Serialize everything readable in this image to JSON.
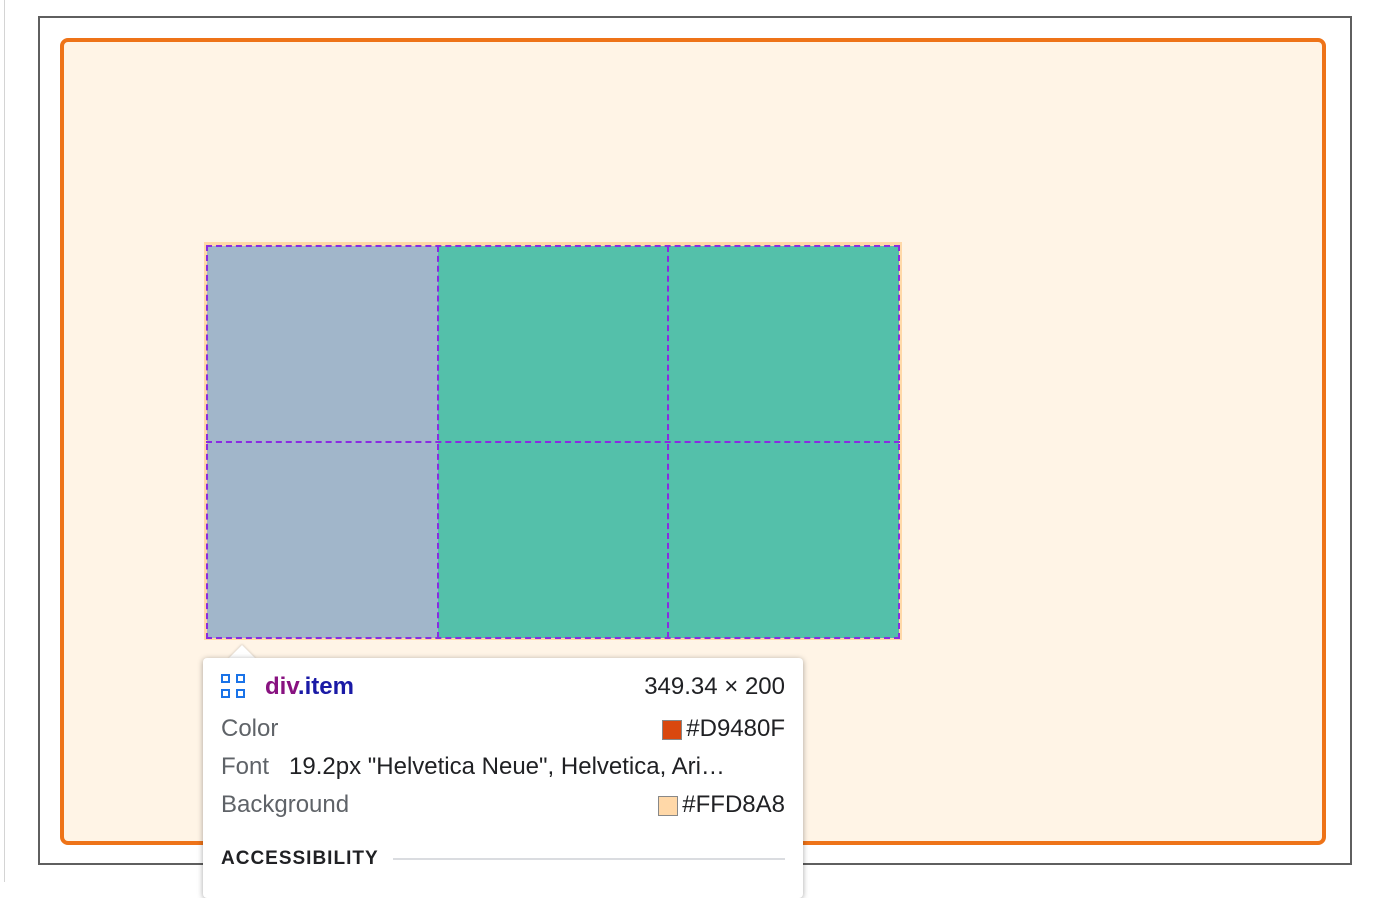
{
  "tooltip": {
    "element": {
      "tag": "div",
      "class_name": ".item"
    },
    "dimensions": "349.34 × 200",
    "icon": "grid-icon",
    "properties": [
      {
        "label": "Color",
        "value": "#D9480F",
        "swatch": "#D9480F"
      },
      {
        "label": "Font",
        "value": "19.2px \"Helvetica Neue\", Helvetica, Ari…"
      },
      {
        "label": "Background",
        "value": "#FFD8A8",
        "swatch": "#FFD8A8"
      }
    ],
    "section": "ACCESSIBILITY"
  },
  "colors": {
    "container_border": "#ee7318",
    "container_bg": "#fff4e6",
    "item_blue": "#a1b6ca",
    "item_teal": "#54c0aa",
    "gridline": "#8a2be2"
  }
}
